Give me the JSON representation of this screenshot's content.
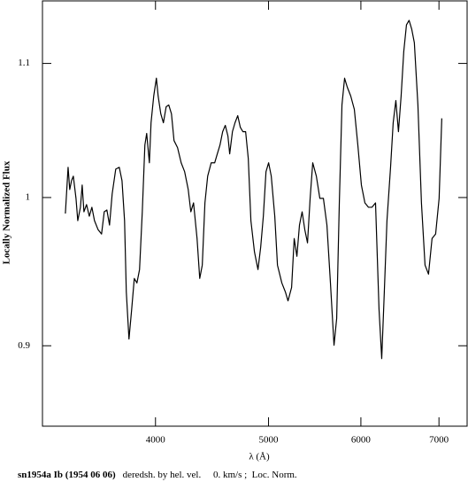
{
  "chart_data": {
    "type": "line",
    "xlabel": "λ (Å)",
    "ylabel": "Locally Normalized Flux",
    "caption_title": "sn1954a Ib (1954 06 06)",
    "caption_info": "deredsh. by hel. vel.     0. km/s ;  Loc. Norm.",
    "xscale": "log",
    "yscale": "log",
    "xlim": [
      3200,
      7400
    ],
    "ylim": [
      0.85,
      1.15
    ],
    "xticks": [
      4000,
      5000,
      6000,
      7000
    ],
    "yticks": [
      0.9,
      1,
      1.1
    ],
    "color": "#000000",
    "x": [
      3348,
      3366,
      3377,
      3389,
      3401,
      3419,
      3431,
      3449,
      3461,
      3473,
      3491,
      3510,
      3528,
      3546,
      3571,
      3596,
      3615,
      3634,
      3653,
      3672,
      3698,
      3724,
      3744,
      3763,
      3776,
      3796,
      3816,
      3836,
      3856,
      3876,
      3897,
      3917,
      3931,
      3952,
      3965,
      3986,
      4007,
      4021,
      4042,
      4063,
      4085,
      4106,
      4128,
      4149,
      4178,
      4208,
      4237,
      4267,
      4289,
      4312,
      4342,
      4365,
      4387,
      4410,
      4434,
      4465,
      4496,
      4519,
      4543,
      4567,
      4591,
      4615,
      4631,
      4656,
      4680,
      4705,
      4729,
      4754,
      4779,
      4804,
      4829,
      4863,
      4897,
      4923,
      4949,
      4975,
      5001,
      5027,
      5062,
      5089,
      5133,
      5169,
      5196,
      5233,
      5260,
      5288,
      5315,
      5343,
      5371,
      5400,
      5428,
      5456,
      5495,
      5533,
      5572,
      5611,
      5650,
      5690,
      5720,
      5750,
      5780,
      5810,
      5841,
      5881,
      5923,
      5964,
      6006,
      6048,
      6090,
      6133,
      6176,
      6219,
      6252,
      6284,
      6317,
      6362,
      6395,
      6429,
      6462,
      6496,
      6530,
      6565,
      6599,
      6634,
      6668,
      6715,
      6762,
      6810,
      6857,
      6905,
      6954,
      7002,
      7039
    ],
    "values": [
      0.9887,
      1.0217,
      1.0057,
      1.0121,
      1.0153,
      0.9994,
      0.9837,
      0.9931,
      1.0089,
      0.9899,
      0.995,
      0.9868,
      0.9931,
      0.9837,
      0.9775,
      0.9744,
      0.9899,
      0.9912,
      0.9806,
      1.0025,
      1.0204,
      1.0217,
      1.0121,
      0.9837,
      0.9351,
      0.9043,
      0.9234,
      0.9441,
      0.9411,
      0.9501,
      0.9899,
      1.038,
      1.0466,
      1.025,
      1.0546,
      1.0748,
      1.0885,
      1.0748,
      1.0613,
      1.0546,
      1.0666,
      1.068,
      1.0613,
      1.0413,
      1.0361,
      1.025,
      1.0185,
      1.0057,
      0.9899,
      0.9962,
      0.9713,
      0.9441,
      0.9531,
      0.9962,
      1.0153,
      1.025,
      1.025,
      1.0315,
      1.038,
      1.0479,
      1.0526,
      1.0446,
      1.0315,
      1.0479,
      1.0546,
      1.0599,
      1.0512,
      1.0479,
      1.0479,
      1.0282,
      0.9837,
      0.9621,
      0.9501,
      0.9652,
      0.9868,
      1.0185,
      1.025,
      1.0153,
      0.9868,
      0.9531,
      0.9411,
      0.9351,
      0.9292,
      0.9381,
      0.9713,
      0.9591,
      0.9806,
      0.9899,
      0.9775,
      0.9683,
      0.9994,
      1.025,
      1.0153,
      0.9994,
      0.9994,
      0.9806,
      0.9411,
      0.9003,
      0.9176,
      0.9962,
      1.068,
      1.0885,
      1.0816,
      1.0748,
      1.0646,
      1.038,
      1.0089,
      0.9962,
      0.9931,
      0.9931,
      0.9962,
      0.9234,
      0.8918,
      0.9351,
      0.9837,
      1.0217,
      1.0546,
      1.0714,
      1.0479,
      1.0748,
      1.1093,
      1.1306,
      1.1342,
      1.127,
      1.1163,
      1.068,
      0.9962,
      0.9531,
      0.947,
      0.9713,
      0.9744,
      0.9994,
      1.0579
    ]
  }
}
